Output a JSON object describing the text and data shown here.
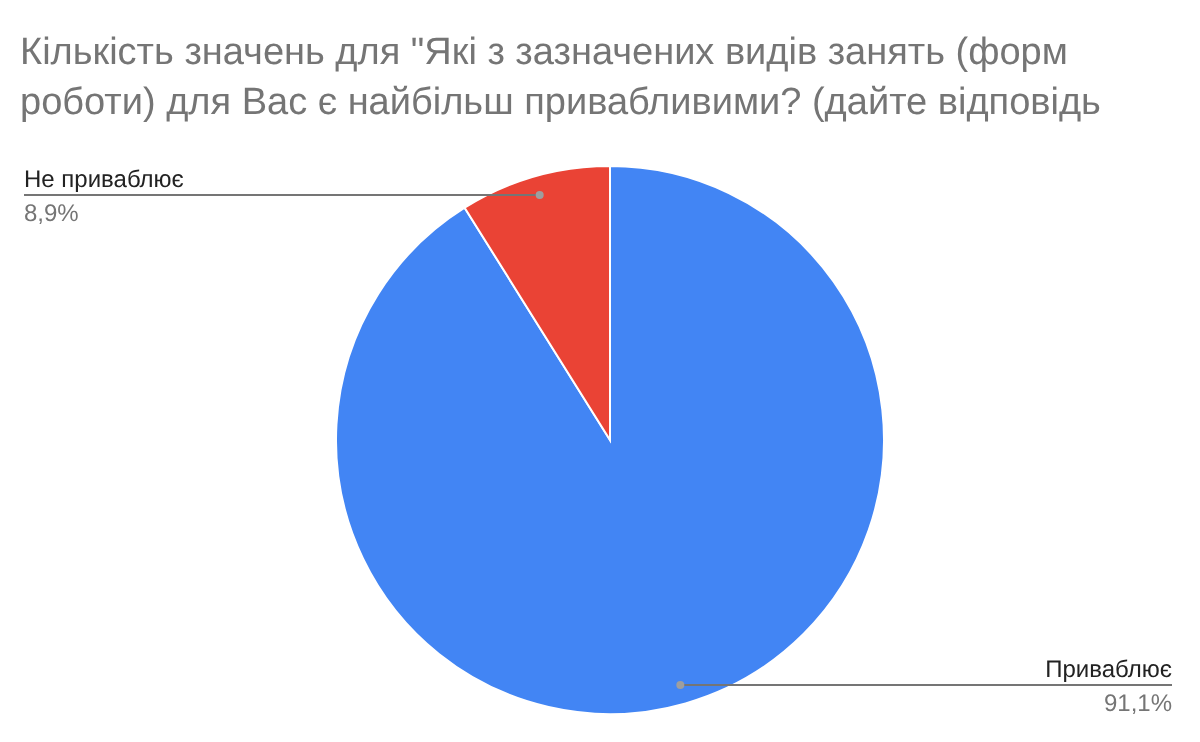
{
  "chart_data": {
    "type": "pie",
    "title": "Кількість значень для \"Які з зазначених видів занять (форм роботи) для Вас є найбільш привабливими? (дайте відповідь",
    "categories": [
      "Приваблює",
      "Не приваблює"
    ],
    "values": [
      91.1,
      8.9
    ],
    "colors": [
      "#4285f4",
      "#ea4335"
    ],
    "value_labels": [
      "91,1%",
      "8,9%"
    ],
    "legend": false
  }
}
